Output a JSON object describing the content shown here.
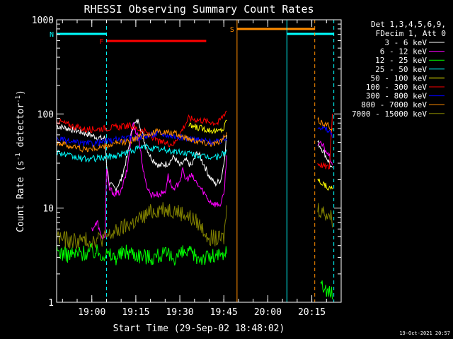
{
  "chart_data": {
    "type": "line",
    "title": "RHESSI Observing Summary Count Rates",
    "xlabel": "Start Time (29-Sep-02 18:48:02)",
    "ylabel_main": "Count Rate (s",
    "ylabel_sup1": "-1",
    "ylabel_mid": " detector",
    "ylabel_sup2": "-1",
    "ylabel_end": ")",
    "footer": "19-Oct-2021 20:57",
    "x_ticks": [
      "19:00",
      "19:15",
      "19:30",
      "19:45",
      "20:00",
      "20:15"
    ],
    "x_tick_minutes": [
      12,
      27,
      42,
      57,
      72,
      87
    ],
    "xlim_minutes": [
      0,
      97
    ],
    "y_scale": "log",
    "ylim": [
      1,
      1000
    ],
    "y_ticks": [
      "1",
      "10",
      "100",
      "1000"
    ],
    "legend_header": [
      "Det 1,3,4,5,6,9,",
      "FDecim 1, Att 0"
    ],
    "flags": [
      {
        "label": "N",
        "color": "#00ffff",
        "start": 0,
        "end": 17.0
      },
      {
        "label": "F",
        "color": "#ff0000",
        "start": 17.0,
        "end": 51.0
      },
      {
        "label": "S",
        "color": "#ff8c00",
        "start": 61.5,
        "end": 88.0
      },
      {
        "label": "",
        "color": "#00ffff",
        "start": 78.5,
        "end": 94.5
      }
    ],
    "series": [
      {
        "name": "3 - 6 keV",
        "color": "#ffffff",
        "values": [
          [
            0,
            75
          ],
          [
            8,
            65
          ],
          [
            15,
            55
          ],
          [
            16.5,
            55
          ],
          [
            17,
            30
          ],
          [
            18,
            18
          ],
          [
            20,
            16
          ],
          [
            22,
            20
          ],
          [
            24,
            35
          ],
          [
            26,
            75
          ],
          [
            28,
            85
          ],
          [
            30,
            50
          ],
          [
            32,
            35
          ],
          [
            35,
            28
          ],
          [
            38,
            30
          ],
          [
            40,
            35
          ],
          [
            42,
            28
          ],
          [
            44,
            32
          ],
          [
            46,
            28
          ],
          [
            48,
            40
          ],
          [
            50,
            30
          ],
          [
            52,
            22
          ],
          [
            54,
            18
          ],
          [
            56,
            20
          ],
          [
            57,
            30
          ],
          [
            58,
            60
          ]
        ],
        "values2": [
          [
            89,
            50
          ],
          [
            91,
            40
          ],
          [
            93,
            30
          ],
          [
            94,
            25
          ]
        ]
      },
      {
        "name": "6 - 12 keV",
        "color": "#ff00ff",
        "values": [
          [
            12,
            6
          ],
          [
            14,
            7
          ],
          [
            15,
            5
          ],
          [
            16.5,
            5
          ],
          [
            17,
            25
          ],
          [
            18,
            16
          ],
          [
            20,
            14
          ],
          [
            22,
            15
          ],
          [
            24,
            25
          ],
          [
            26,
            80
          ],
          [
            28,
            55
          ],
          [
            30,
            20
          ],
          [
            32,
            14
          ],
          [
            35,
            14
          ],
          [
            37,
            15
          ],
          [
            38,
            22
          ],
          [
            39,
            18
          ],
          [
            40,
            15
          ],
          [
            42,
            20
          ],
          [
            43,
            25
          ],
          [
            44,
            20
          ],
          [
            46,
            22
          ],
          [
            48,
            18
          ],
          [
            50,
            15
          ],
          [
            52,
            12
          ],
          [
            54,
            11
          ],
          [
            56,
            11
          ],
          [
            57,
            14
          ],
          [
            58,
            35
          ]
        ],
        "values2": [
          [
            89,
            50
          ],
          [
            91,
            45
          ],
          [
            93,
            35
          ],
          [
            94,
            30
          ]
        ]
      },
      {
        "name": "12 - 25 keV",
        "color": "#00ff00",
        "values": [
          [
            0,
            3.5
          ],
          [
            4,
            3.2
          ],
          [
            8,
            3.3
          ],
          [
            12,
            3.5
          ],
          [
            16,
            3.3
          ],
          [
            20,
            3.0
          ],
          [
            24,
            3.5
          ],
          [
            28,
            3.2
          ],
          [
            32,
            3.0
          ],
          [
            36,
            3.2
          ],
          [
            40,
            3.0
          ],
          [
            44,
            3.4
          ],
          [
            48,
            3.0
          ],
          [
            52,
            3.0
          ],
          [
            55,
            3.1
          ],
          [
            57,
            3.0
          ],
          [
            58,
            4
          ]
        ],
        "values2": [
          [
            90,
            1.5
          ],
          [
            92,
            1.4
          ],
          [
            94,
            1.2
          ]
        ]
      },
      {
        "name": "25 - 50 keV",
        "color": "#00ffff",
        "values": [
          [
            0,
            40
          ],
          [
            5,
            35
          ],
          [
            10,
            33
          ],
          [
            15,
            34
          ],
          [
            20,
            36
          ],
          [
            25,
            40
          ],
          [
            30,
            45
          ],
          [
            35,
            42
          ],
          [
            40,
            40
          ],
          [
            45,
            38
          ],
          [
            50,
            35
          ],
          [
            55,
            35
          ],
          [
            58,
            40
          ]
        ],
        "values2": []
      },
      {
        "name": "50 - 100 keV",
        "color": "#ffff00",
        "values": [
          [
            45,
            75
          ],
          [
            50,
            70
          ],
          [
            55,
            65
          ],
          [
            57,
            70
          ],
          [
            58,
            90
          ]
        ],
        "values2": [
          [
            89,
            20
          ],
          [
            91,
            18
          ],
          [
            93,
            16
          ],
          [
            94,
            17
          ]
        ]
      },
      {
        "name": "100 - 300 keV",
        "color": "#ff0000",
        "values": [
          [
            0,
            85
          ],
          [
            5,
            75
          ],
          [
            10,
            68
          ],
          [
            15,
            70
          ],
          [
            20,
            72
          ],
          [
            25,
            75
          ],
          [
            30,
            65
          ],
          [
            35,
            50
          ],
          [
            40,
            48
          ],
          [
            45,
            90
          ],
          [
            50,
            85
          ],
          [
            55,
            80
          ],
          [
            58,
            110
          ]
        ],
        "values2": [
          [
            89,
            30
          ],
          [
            91,
            28
          ],
          [
            93,
            27
          ],
          [
            94,
            100
          ]
        ]
      },
      {
        "name": "300 - 800 keV",
        "color": "#0000ff",
        "values": [
          [
            0,
            55
          ],
          [
            5,
            50
          ],
          [
            10,
            48
          ],
          [
            15,
            50
          ],
          [
            20,
            53
          ],
          [
            25,
            55
          ],
          [
            30,
            58
          ],
          [
            35,
            62
          ],
          [
            40,
            58
          ],
          [
            45,
            55
          ],
          [
            50,
            52
          ],
          [
            55,
            50
          ],
          [
            58,
            55
          ]
        ],
        "values2": [
          [
            89,
            75
          ],
          [
            91,
            70
          ],
          [
            93,
            65
          ],
          [
            94,
            60
          ]
        ]
      },
      {
        "name": "800 - 7000 keV",
        "color": "#ff8c00",
        "values": [
          [
            0,
            50
          ],
          [
            5,
            45
          ],
          [
            10,
            42
          ],
          [
            15,
            44
          ],
          [
            20,
            48
          ],
          [
            25,
            52
          ],
          [
            30,
            60
          ],
          [
            35,
            65
          ],
          [
            40,
            62
          ],
          [
            45,
            55
          ],
          [
            50,
            50
          ],
          [
            55,
            48
          ],
          [
            58,
            60
          ]
        ],
        "values2": [
          [
            89,
            85
          ],
          [
            91,
            80
          ],
          [
            93,
            75
          ],
          [
            94,
            70
          ]
        ]
      },
      {
        "name": "7000 - 15000 keV",
        "color": "#808000",
        "values": [
          [
            0,
            5
          ],
          [
            4,
            4.5
          ],
          [
            8,
            4.5
          ],
          [
            12,
            4.6
          ],
          [
            16,
            4.8
          ],
          [
            20,
            5.5
          ],
          [
            24,
            6.5
          ],
          [
            28,
            7.5
          ],
          [
            32,
            9
          ],
          [
            36,
            10
          ],
          [
            40,
            9.5
          ],
          [
            44,
            8.5
          ],
          [
            48,
            7
          ],
          [
            52,
            5
          ],
          [
            55,
            4.6
          ],
          [
            57,
            4.8
          ],
          [
            58,
            10
          ]
        ],
        "values2": [
          [
            89,
            10
          ],
          [
            91,
            9
          ],
          [
            93,
            8.5
          ],
          [
            94,
            7.5
          ]
        ]
      }
    ]
  }
}
